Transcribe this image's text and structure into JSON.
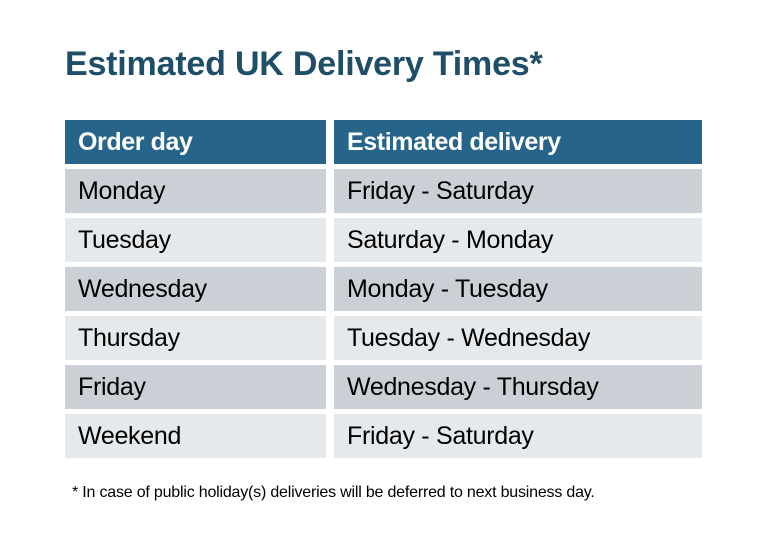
{
  "title": "Estimated UK Delivery Times*",
  "table": {
    "headers": [
      "Order day",
      "Estimated delivery"
    ],
    "rows": [
      {
        "order_day": "Monday",
        "estimated_delivery": "Friday - Saturday"
      },
      {
        "order_day": "Tuesday",
        "estimated_delivery": "Saturday - Monday"
      },
      {
        "order_day": "Wednesday",
        "estimated_delivery": "Monday - Tuesday"
      },
      {
        "order_day": "Thursday",
        "estimated_delivery": "Tuesday - Wednesday"
      },
      {
        "order_day": "Friday",
        "estimated_delivery": "Wednesday - Thursday"
      },
      {
        "order_day": "Weekend",
        "estimated_delivery": "Friday - Saturday"
      }
    ]
  },
  "footnote": "* In case of public holiday(s) deliveries will be deferred to next business day.",
  "colors": {
    "background": "#ffffff",
    "title_text": "#1e4e68",
    "header_bg": "#26648a",
    "header_text": "#ffffff",
    "row_odd_bg": "#cbd0d6",
    "row_even_bg": "#e6e9ec",
    "cell_text": "#000000"
  }
}
